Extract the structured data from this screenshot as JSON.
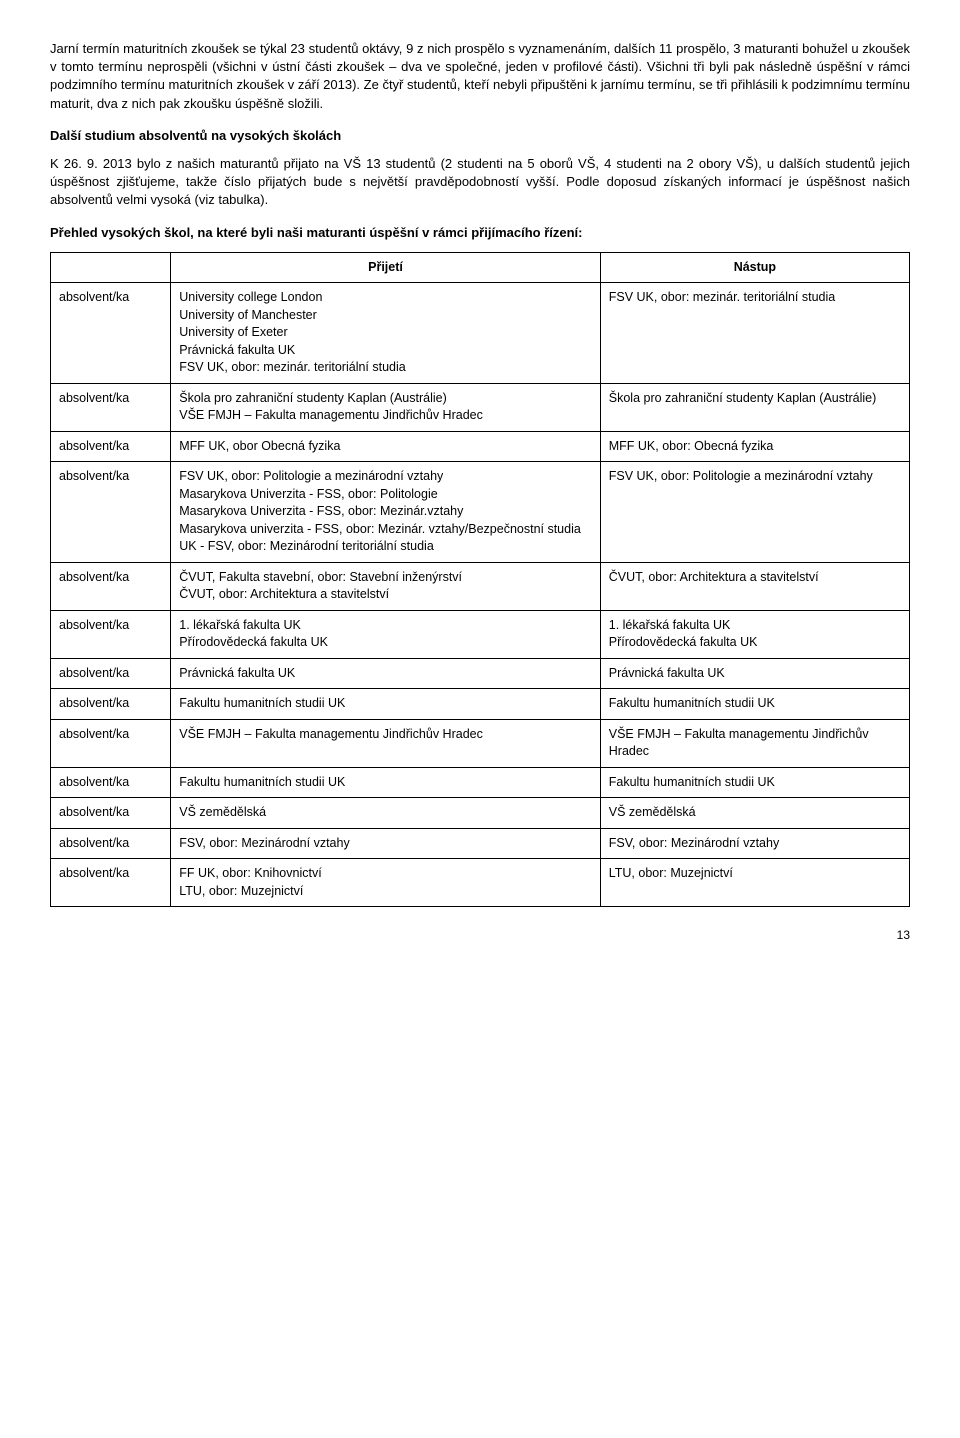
{
  "para1": "Jarní termín maturitních zkoušek se týkal 23 studentů oktávy, 9 z nich prospělo s vyznamenáním, dalších 11 prospělo, 3 maturanti bohužel u zkoušek v tomto termínu neprospěli (všichni v ústní části zkoušek – dva ve společné, jeden v profilové části). Všichni tři byli pak následně úspěšní v rámci podzimního termínu maturitních zkoušek v září 2013). Ze čtyř studentů, kteří nebyli připuštěni k jarnímu termínu, se tři přihlásili k podzimnímu termínu maturit, dva z nich pak zkoušku úspěšně složili.",
  "heading1": "Další studium absolventů na vysokých školách",
  "para2": "K 26. 9. 2013 bylo z našich maturantů přijato na VŠ 13 studentů (2 studenti na 5 oborů VŠ, 4 studenti na 2 obory VŠ), u dalších studentů jejich úspěšnost zjišťujeme, takže číslo přijatých bude s největší pravděpodobností vyšší. Podle doposud získaných informací je úspěšnost našich absolventů velmi vysoká (viz tabulka).",
  "heading2": "Přehled vysokých škol, na které byli naši maturanti úspěšní v rámci přijímacího řízení:",
  "table": {
    "headers": [
      "",
      "Přijetí",
      "Nástup"
    ],
    "label": "absolvent/ka",
    "rows": [
      {
        "accept": "University college London\nUniversity of Manchester\nUniversity of Exeter\nPrávnická fakulta UK\nFSV UK, obor: mezinár. teritoriální studia",
        "start": "FSV UK, obor: mezinár. teritoriální studia"
      },
      {
        "accept": "Škola pro zahraniční studenty Kaplan (Austrálie)\nVŠE FMJH – Fakulta managementu Jindřichův Hradec",
        "start": "Škola pro zahraniční studenty Kaplan (Austrálie)"
      },
      {
        "accept": "MFF UK, obor Obecná fyzika",
        "start": "MFF UK, obor: Obecná fyzika"
      },
      {
        "accept": "FSV UK, obor: Politologie a mezinárodní vztahy\nMasarykova Univerzita - FSS, obor: Politologie\nMasarykova Univerzita - FSS, obor: Mezinár.vztahy\nMasarykova univerzita - FSS, obor: Mezinár. vztahy/Bezpečnostní studia\nUK - FSV, obor: Mezinárodní teritoriální studia",
        "start": "FSV UK, obor: Politologie a mezinárodní vztahy"
      },
      {
        "accept": "ČVUT, Fakulta stavební, obor: Stavební inženýrství\nČVUT, obor: Architektura a stavitelství",
        "start": "ČVUT, obor: Architektura a stavitelství"
      },
      {
        "accept": "1. lékařská fakulta UK\nPřírodovědecká fakulta UK",
        "start": "1. lékařská fakulta UK\nPřírodovědecká fakulta UK"
      },
      {
        "accept": "Právnická fakulta UK",
        "start": "Právnická fakulta UK"
      },
      {
        "accept": "Fakultu humanitních studii UK",
        "start": "Fakultu humanitních studii UK"
      },
      {
        "accept": "VŠE FMJH – Fakulta managementu Jindřichův Hradec",
        "start": "VŠE FMJH – Fakulta managementu Jindřichův Hradec"
      },
      {
        "accept": "Fakultu humanitních studii UK",
        "start": "Fakultu humanitních studii UK"
      },
      {
        "accept": "VŠ zemědělská",
        "start": "VŠ zemědělská"
      },
      {
        "accept": "FSV, obor: Mezinárodní vztahy",
        "start": "FSV, obor: Mezinárodní vztahy"
      },
      {
        "accept": "FF UK, obor: Knihovnictví\nLTU, obor: Muzejnictví",
        "start": "LTU, obor: Muzejnictví"
      }
    ]
  },
  "page_number": "13"
}
